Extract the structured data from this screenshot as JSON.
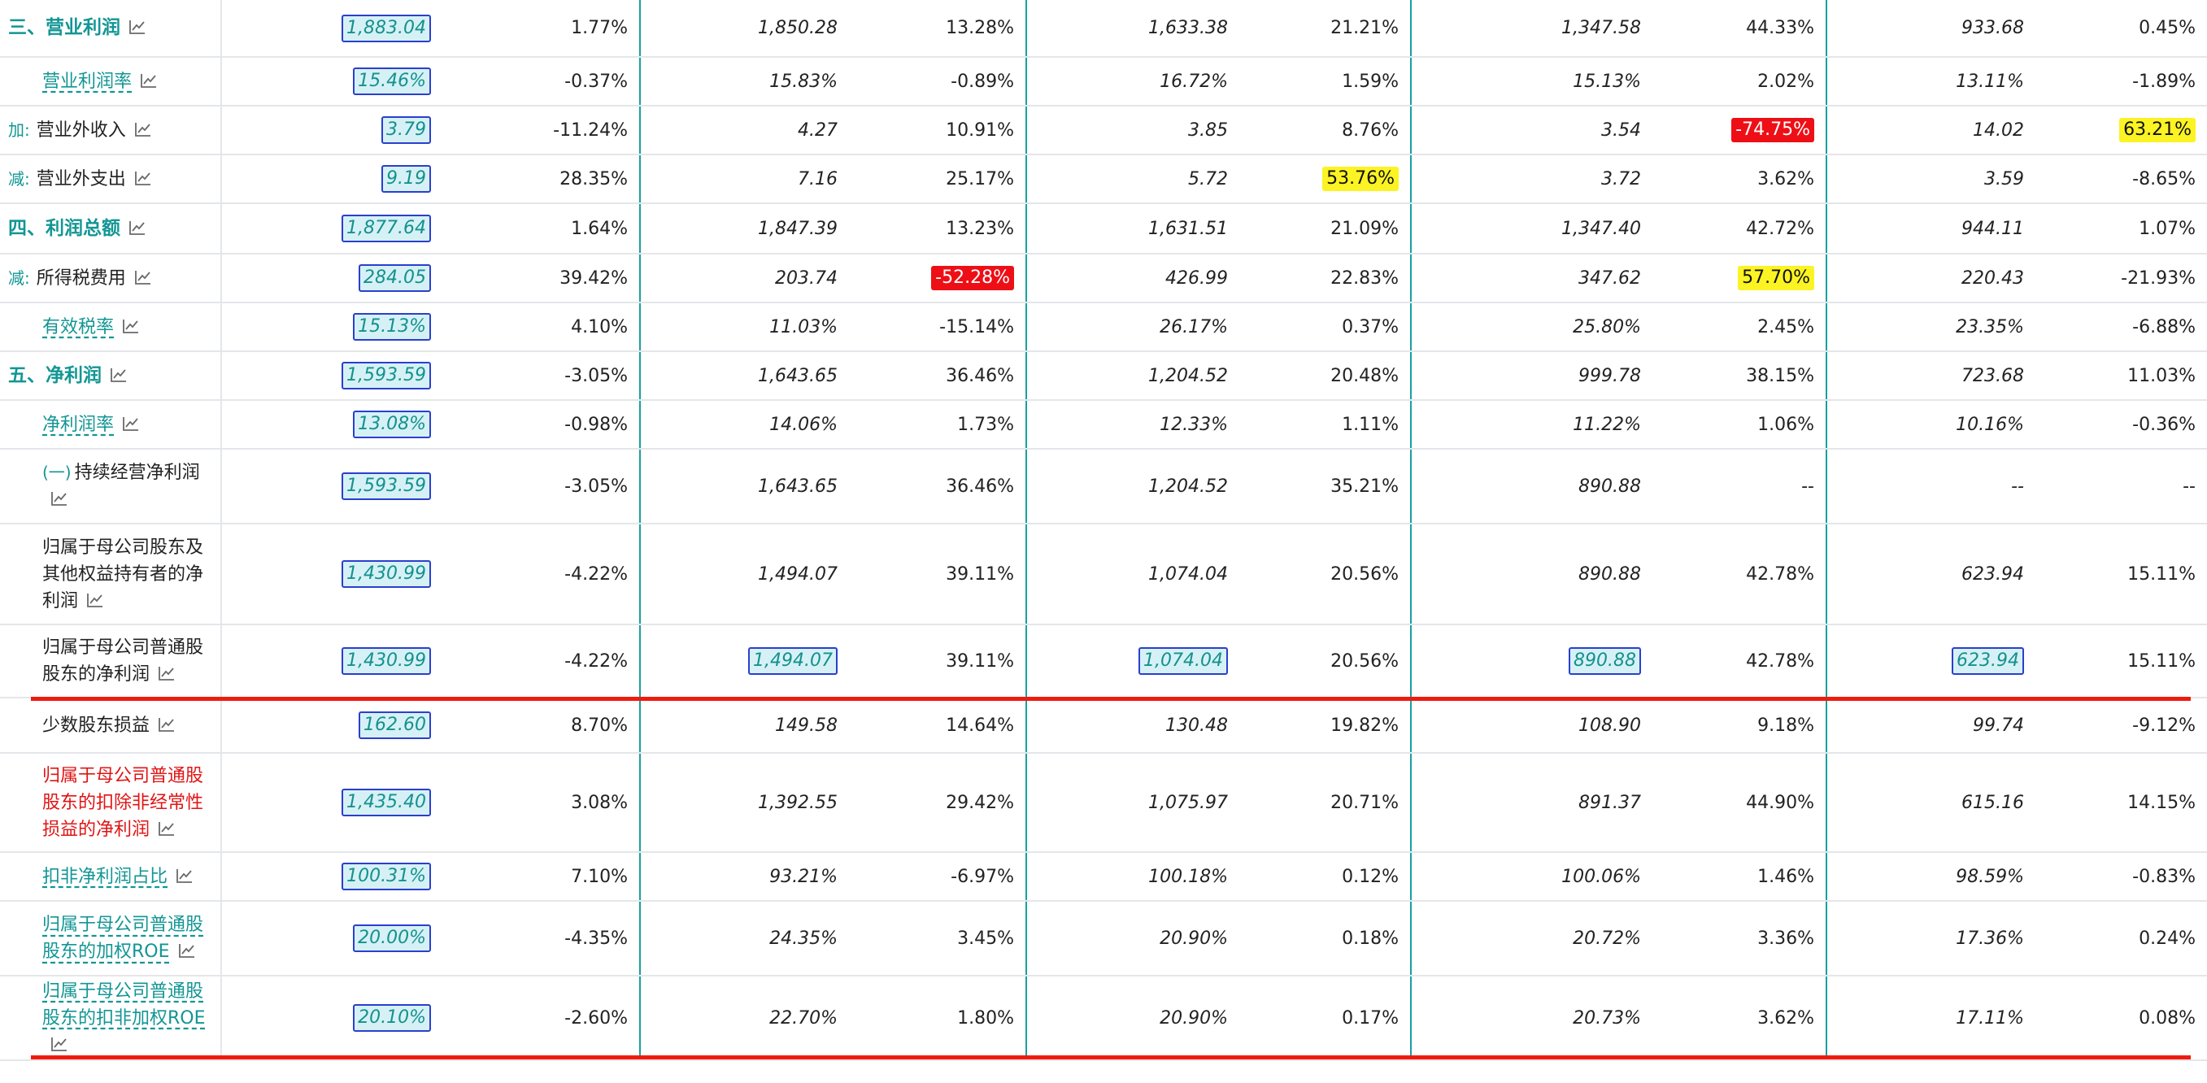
{
  "rows": [
    {
      "id": "r1",
      "prefix": "",
      "label": "三、营业利润",
      "style": "bold",
      "cells": [
        "1,883.04",
        "1.77%",
        "1,850.28",
        "13.28%",
        "1,633.38",
        "21.21%",
        "1,347.58",
        "44.33%",
        "933.68",
        "0.45%"
      ]
    },
    {
      "id": "r2",
      "prefix": "",
      "label": "营业利润率",
      "style": "link",
      "cells": [
        "15.46%",
        "-0.37%",
        "15.83%",
        "-0.89%",
        "16.72%",
        "1.59%",
        "15.13%",
        "2.02%",
        "13.11%",
        "-1.89%"
      ]
    },
    {
      "id": "r3",
      "prefix": "加:",
      "label": "营业外收入",
      "style": "plain",
      "cells": [
        "3.79",
        "-11.24%",
        "4.27",
        "10.91%",
        "3.85",
        "8.76%",
        "3.54",
        "-74.75%",
        "14.02",
        "63.21%"
      ]
    },
    {
      "id": "r4",
      "prefix": "减:",
      "label": "营业外支出",
      "style": "plain",
      "cells": [
        "9.19",
        "28.35%",
        "7.16",
        "25.17%",
        "5.72",
        "53.76%",
        "3.72",
        "3.62%",
        "3.59",
        "-8.65%"
      ]
    },
    {
      "id": "r5",
      "prefix": "",
      "label": "四、利润总额",
      "style": "bold",
      "cells": [
        "1,877.64",
        "1.64%",
        "1,847.39",
        "13.23%",
        "1,631.51",
        "21.09%",
        "1,347.40",
        "42.72%",
        "944.11",
        "1.07%"
      ]
    },
    {
      "id": "r6",
      "prefix": "减:",
      "label": "所得税费用",
      "style": "plain",
      "cells": [
        "284.05",
        "39.42%",
        "203.74",
        "-52.28%",
        "426.99",
        "22.83%",
        "347.62",
        "57.70%",
        "220.43",
        "-21.93%"
      ]
    },
    {
      "id": "r7",
      "prefix": "",
      "label": "有效税率",
      "style": "link",
      "cells": [
        "15.13%",
        "4.10%",
        "11.03%",
        "-15.14%",
        "26.17%",
        "0.37%",
        "25.80%",
        "2.45%",
        "23.35%",
        "-6.88%"
      ]
    },
    {
      "id": "r8",
      "prefix": "",
      "label": "五、净利润",
      "style": "bold",
      "cells": [
        "1,593.59",
        "-3.05%",
        "1,643.65",
        "36.46%",
        "1,204.52",
        "20.48%",
        "999.78",
        "38.15%",
        "723.68",
        "11.03%"
      ]
    },
    {
      "id": "r9",
      "prefix": "",
      "label": "净利润率",
      "style": "link",
      "cells": [
        "13.08%",
        "-0.98%",
        "14.06%",
        "1.73%",
        "12.33%",
        "1.11%",
        "11.22%",
        "1.06%",
        "10.16%",
        "-0.36%"
      ]
    },
    {
      "id": "r10",
      "prefix": "(一)",
      "label": "持续经营净利润",
      "style": "plain",
      "cells": [
        "1,593.59",
        "-3.05%",
        "1,643.65",
        "36.46%",
        "1,204.52",
        "35.21%",
        "890.88",
        "--",
        "--",
        "--"
      ]
    },
    {
      "id": "r11",
      "prefix": "",
      "label": "归属于母公司股东及其他权益持有者的净利润",
      "style": "plain",
      "cells": [
        "1,430.99",
        "-4.22%",
        "1,494.07",
        "39.11%",
        "1,074.04",
        "20.56%",
        "890.88",
        "42.78%",
        "623.94",
        "15.11%"
      ]
    },
    {
      "id": "r12",
      "prefix": "",
      "label": "归属于母公司普通股股东的净利润",
      "style": "plain",
      "cells": [
        "1,430.99",
        "-4.22%",
        "1,494.07",
        "39.11%",
        "1,074.04",
        "20.56%",
        "890.88",
        "42.78%",
        "623.94",
        "15.11%"
      ]
    },
    {
      "id": "r13",
      "prefix": "",
      "label": "少数股东损益",
      "style": "plain",
      "cells": [
        "162.60",
        "8.70%",
        "149.58",
        "14.64%",
        "130.48",
        "19.82%",
        "108.90",
        "9.18%",
        "99.74",
        "-9.12%"
      ]
    },
    {
      "id": "r14",
      "prefix": "",
      "label": "归属于母公司普通股股东的扣除非经常性损益的净利润",
      "style": "red",
      "cells": [
        "1,435.40",
        "3.08%",
        "1,392.55",
        "29.42%",
        "1,075.97",
        "20.71%",
        "891.37",
        "44.90%",
        "615.16",
        "14.15%"
      ]
    },
    {
      "id": "r15",
      "prefix": "",
      "label": "扣非净利润占比",
      "style": "link",
      "cells": [
        "100.31%",
        "7.10%",
        "93.21%",
        "-6.97%",
        "100.18%",
        "0.12%",
        "100.06%",
        "1.46%",
        "98.59%",
        "-0.83%"
      ]
    },
    {
      "id": "r16",
      "prefix": "",
      "label": "归属于母公司普通股股东的加权ROE",
      "style": "link",
      "cells": [
        "20.00%",
        "-4.35%",
        "24.35%",
        "3.45%",
        "20.90%",
        "0.18%",
        "20.72%",
        "3.36%",
        "17.36%",
        "0.24%"
      ]
    },
    {
      "id": "r17",
      "prefix": "",
      "label": "归属于母公司普通股股东的扣非加权ROE",
      "style": "link",
      "cells": [
        "20.10%",
        "-2.60%",
        "22.70%",
        "1.80%",
        "20.90%",
        "0.17%",
        "20.73%",
        "3.62%",
        "17.11%",
        "0.08%"
      ]
    }
  ],
  "highlights": [
    {
      "row": "r3",
      "col": 7,
      "color": "#ee0f16"
    },
    {
      "row": "r3",
      "col": 9,
      "color": "#fbf323"
    },
    {
      "row": "r4",
      "col": 5,
      "color": "#fbf323"
    },
    {
      "row": "r6",
      "col": 3,
      "color": "#ee0f16"
    },
    {
      "row": "r6",
      "col": 7,
      "color": "#fbf323"
    }
  ],
  "boxed_cells": [
    {
      "row": "r12",
      "cols": [
        0,
        2,
        4,
        6,
        8
      ]
    }
  ],
  "colors": {
    "accent": "#129694",
    "value_text": "#14918f",
    "box_border": "#2a3fcf",
    "box_fill": "#d6f1f5",
    "red_line": "#ee1c0e",
    "highlight_red": "#ee0f16",
    "highlight_yellow": "#fbf323"
  },
  "icons": {
    "row_trend": "trend-chart-icon"
  }
}
